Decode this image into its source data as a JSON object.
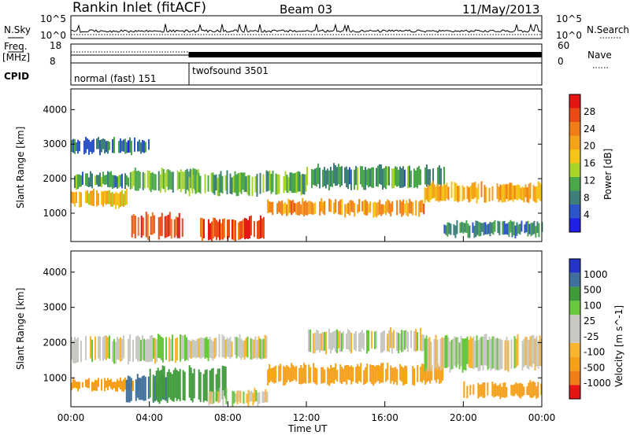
{
  "header": {
    "station": "Rankin Inlet (fitACF)",
    "beam": "Beam 03",
    "date": "11/May/2013"
  },
  "status_panel": {
    "left_label": "N.Sky",
    "left_ticks": [
      "10^5",
      "10^0"
    ],
    "right_label": "N.Search",
    "right_ticks": [
      "10^5",
      "10^0"
    ]
  },
  "freq_panel": {
    "label_line1": "Freq.",
    "label_line2": "[MHz]",
    "left_ticks": [
      "18",
      "8"
    ],
    "right_label": "Nave",
    "right_ticks": [
      "60",
      "0"
    ]
  },
  "cpid": {
    "label": "CPID",
    "modes": [
      {
        "name": "normal (fast) 151",
        "start_hour": 0,
        "end_hour": 6
      },
      {
        "name": "twofsound 3501",
        "start_hour": 6,
        "end_hour": 24
      }
    ]
  },
  "time_axis": {
    "label": "Time UT",
    "ticks": [
      "00:00",
      "04:00",
      "08:00",
      "12:00",
      "16:00",
      "20:00",
      "00:00"
    ]
  },
  "range_axis": {
    "label": "Slant Range [km]",
    "ticks": [
      "1000",
      "2000",
      "3000",
      "4000"
    ]
  },
  "colors": {
    "power": [
      "#1f1fe6",
      "#2d54c8",
      "#3f7f7a",
      "#4aa84a",
      "#a8d42a",
      "#f5c419",
      "#f4a21a",
      "#f07d18",
      "#ea4a14",
      "#e51512"
    ],
    "velocity": [
      "#e51512",
      "#f07d18",
      "#f6a01a",
      "#f9b530",
      "#c9c9c3",
      "#c9c9c3",
      "#68c83c",
      "#3f9a3a",
      "#3f6f9a",
      "#2434c8"
    ]
  },
  "chart_data": [
    {
      "type": "heatmap",
      "title": "",
      "xlabel": "Time UT",
      "ylabel": "Slant Range [km]",
      "xlim": [
        0,
        24
      ],
      "ylim": [
        180,
        4600
      ],
      "colorbar": {
        "label": "Power [dB]",
        "range": [
          0,
          32
        ],
        "ticks": [
          "4",
          "8",
          "12",
          "16",
          "20",
          "24",
          "28"
        ]
      },
      "bands": [
        {
          "start_hour": 0.0,
          "end_hour": 3.0,
          "range_km": [
            1150,
            1700
          ],
          "typical_value": 18
        },
        {
          "start_hour": 0.0,
          "end_hour": 3.0,
          "range_km": [
            1700,
            2200
          ],
          "typical_value": 10
        },
        {
          "start_hour": 0.0,
          "end_hour": 4.0,
          "range_km": [
            2700,
            3200
          ],
          "typical_value": 7
        },
        {
          "start_hour": 3.0,
          "end_hour": 6.5,
          "range_km": [
            1600,
            2300
          ],
          "typical_value": 12
        },
        {
          "start_hour": 3.0,
          "end_hour": 6.0,
          "range_km": [
            250,
            1000
          ],
          "typical_value": 28
        },
        {
          "start_hour": 6.5,
          "end_hour": 10.0,
          "range_km": [
            200,
            900
          ],
          "typical_value": 27
        },
        {
          "start_hour": 6.0,
          "end_hour": 12.0,
          "range_km": [
            1500,
            2200
          ],
          "typical_value": 12
        },
        {
          "start_hour": 10.0,
          "end_hour": 18.0,
          "range_km": [
            900,
            1400
          ],
          "typical_value": 22
        },
        {
          "start_hour": 12.0,
          "end_hour": 19.0,
          "range_km": [
            1700,
            2400
          ],
          "typical_value": 10
        },
        {
          "start_hour": 18.0,
          "end_hour": 24.0,
          "range_km": [
            1300,
            1900
          ],
          "typical_value": 20
        },
        {
          "start_hour": 19.0,
          "end_hour": 24.0,
          "range_km": [
            300,
            800
          ],
          "typical_value": 8
        }
      ]
    },
    {
      "type": "heatmap",
      "title": "",
      "xlabel": "Time UT",
      "ylabel": "Slant Range [km]",
      "xlim": [
        0,
        24
      ],
      "ylim": [
        180,
        4600
      ],
      "colorbar": {
        "label": "Velocity [m s^-1]",
        "ticks": [
          "-1000",
          "-500",
          "-100",
          "-25",
          "25",
          "100",
          "500",
          "1000"
        ]
      },
      "bands": [
        {
          "start_hour": 0.0,
          "end_hour": 6.0,
          "range_km": [
            1400,
            2200
          ],
          "typical_value": 0
        },
        {
          "start_hour": 0.0,
          "end_hour": 3.5,
          "range_km": [
            600,
            1000
          ],
          "typical_value": -200
        },
        {
          "start_hour": 2.8,
          "end_hour": 5.0,
          "range_km": [
            300,
            1100
          ],
          "typical_value": 700
        },
        {
          "start_hour": 4.0,
          "end_hour": 8.0,
          "range_km": [
            300,
            1300
          ],
          "typical_value": 200
        },
        {
          "start_hour": 6.0,
          "end_hour": 10.0,
          "range_km": [
            1500,
            2200
          ],
          "typical_value": 0
        },
        {
          "start_hour": 7.0,
          "end_hour": 10.0,
          "range_km": [
            200,
            700
          ],
          "typical_value": 0
        },
        {
          "start_hour": 10.0,
          "end_hour": 19.0,
          "range_km": [
            800,
            1400
          ],
          "typical_value": -150
        },
        {
          "start_hour": 12.0,
          "end_hour": 18.0,
          "range_km": [
            1700,
            2400
          ],
          "typical_value": 0
        },
        {
          "start_hour": 18.0,
          "end_hour": 24.0,
          "range_km": [
            1200,
            2200
          ],
          "typical_value": 0
        },
        {
          "start_hour": 20.0,
          "end_hour": 24.0,
          "range_km": [
            400,
            900
          ],
          "typical_value": -300
        }
      ]
    }
  ]
}
